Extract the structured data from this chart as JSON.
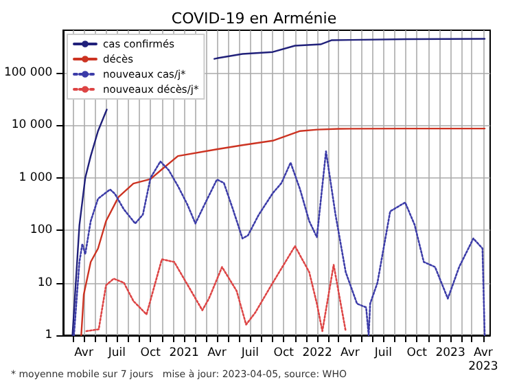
{
  "chart_data": {
    "type": "line",
    "title": "COVID-19 en Arménie",
    "log": "y",
    "grid": true,
    "legend": "top left",
    "marker": "none",
    "annotations": [
      "* moyenne mobile sur 7 jours   mise à jour: 2023-04-05, source: WHO"
    ],
    "xlim": [
      "2020-02-05",
      "2023-04-20"
    ],
    "xticks": [
      {
        "value": "2020-03-01",
        "label": null
      },
      {
        "value": "2020-04-01",
        "label": "Avr"
      },
      {
        "value": "2020-05-01",
        "label": null
      },
      {
        "value": "2020-06-01",
        "label": null
      },
      {
        "value": "2020-07-01",
        "label": "Juil"
      },
      {
        "value": "2020-08-01",
        "label": null
      },
      {
        "value": "2020-09-01",
        "label": null
      },
      {
        "value": "2020-10-01",
        "label": "Oct"
      },
      {
        "value": "2020-11-01",
        "label": null
      },
      {
        "value": "2020-12-01",
        "label": null
      },
      {
        "value": "2021-01-01",
        "label": "2021"
      },
      {
        "value": "2021-02-01",
        "label": null
      },
      {
        "value": "2021-03-01",
        "label": null
      },
      {
        "value": "2021-04-01",
        "label": "Avr"
      },
      {
        "value": "2021-05-01",
        "label": null
      },
      {
        "value": "2021-06-01",
        "label": null
      },
      {
        "value": "2021-07-01",
        "label": "Juil"
      },
      {
        "value": "2021-08-01",
        "label": null
      },
      {
        "value": "2021-09-01",
        "label": null
      },
      {
        "value": "2021-10-01",
        "label": "Oct"
      },
      {
        "value": "2021-11-01",
        "label": null
      },
      {
        "value": "2021-12-01",
        "label": null
      },
      {
        "value": "2022-01-01",
        "label": "2022"
      },
      {
        "value": "2022-02-01",
        "label": null
      },
      {
        "value": "2022-03-01",
        "label": null
      },
      {
        "value": "2022-04-01",
        "label": "Avr"
      },
      {
        "value": "2022-05-01",
        "label": null
      },
      {
        "value": "2022-06-01",
        "label": null
      },
      {
        "value": "2022-07-01",
        "label": "Juil"
      },
      {
        "value": "2022-08-01",
        "label": null
      },
      {
        "value": "2022-09-01",
        "label": null
      },
      {
        "value": "2022-10-01",
        "label": "Oct"
      },
      {
        "value": "2022-11-01",
        "label": null
      },
      {
        "value": "2022-12-01",
        "label": null
      },
      {
        "value": "2023-01-01",
        "label": "2023"
      },
      {
        "value": "2023-02-01",
        "label": null
      },
      {
        "value": "2023-03-01",
        "label": null
      },
      {
        "value": "2023-04-01",
        "label": "Avr\n2023"
      }
    ],
    "ylim": [
      1,
      650000
    ],
    "yticks": [
      1,
      10,
      100,
      {
        "value": 1000,
        "label": "1 000"
      },
      {
        "value": 10000,
        "label": "10 000"
      },
      {
        "value": 100000,
        "label": "100 000"
      }
    ],
    "series": [
      {
        "name": "cas confirmés",
        "color": "#20207a",
        "line_style": "solid",
        "x": [
          "2020-03-01",
          "2020-03-20",
          "2020-04-05",
          "2020-04-20",
          "2020-05-10",
          "2020-06-03",
          "2020-07-20",
          "2020-09-01",
          "2020-11-20",
          "2021-01-15",
          "2021-03-25",
          "2021-04-01",
          "2021-06-10",
          "2021-09-01",
          "2021-11-01",
          "2022-01-10",
          "2022-02-10",
          "2022-04-01",
          "2022-09-01",
          "2023-04-05"
        ],
        "values": [
          1,
          125,
          1000,
          2600,
          7800,
          20000,
          null,
          null,
          null,
          null,
          185000,
          190000,
          230000,
          250000,
          330000,
          350000,
          420000,
          425000,
          440000,
          445000
        ]
      },
      {
        "name": "décès",
        "color": "#cc3322",
        "line_style": "solid",
        "x": [
          "2020-03-25",
          "2020-04-01",
          "2020-04-20",
          "2020-05-10",
          "2020-06-01",
          "2020-07-05",
          "2020-08-15",
          "2020-10-01",
          "2020-11-01",
          "2020-12-15",
          "2021-04-01",
          "2021-06-10",
          "2021-09-01",
          "2021-11-15",
          "2022-01-01",
          "2022-03-01",
          "2022-09-01",
          "2023-04-05"
        ],
        "values": [
          1,
          6,
          25,
          45,
          150,
          430,
          780,
          950,
          1450,
          2600,
          3500,
          4200,
          5100,
          7800,
          8300,
          8600,
          8700,
          8700
        ]
      },
      {
        "name": "nouveaux cas/j*",
        "color": "#3c3ca8",
        "line_style": "dotted",
        "x": [
          "2020-03-05",
          "2020-03-20",
          "2020-03-28",
          "2020-04-05",
          "2020-04-20",
          "2020-05-10",
          "2020-06-12",
          "2020-06-25",
          "2020-07-20",
          "2020-08-20",
          "2020-09-10",
          "2020-10-01",
          "2020-10-28",
          "2020-11-20",
          "2020-12-15",
          "2021-01-10",
          "2021-02-01",
          "2021-02-25",
          "2021-04-01",
          "2021-04-20",
          "2021-05-15",
          "2021-06-10",
          "2021-06-25",
          "2021-07-25",
          "2021-09-01",
          "2021-09-25",
          "2021-10-20",
          "2021-11-15",
          "2021-12-10",
          "2021-12-31",
          "2022-01-25",
          "2022-02-20",
          "2022-03-20",
          "2022-04-20",
          "2022-05-15",
          "2022-05-22",
          "2022-05-26",
          "2022-06-15",
          "2022-07-20",
          "2022-08-30",
          "2022-09-25",
          "2022-10-20",
          "2022-11-20",
          "2022-12-25",
          "2023-01-25",
          "2023-03-05",
          "2023-03-30",
          "2023-04-05"
        ],
        "values": [
          1,
          25,
          55,
          35,
          150,
          400,
          600,
          500,
          250,
          135,
          200,
          1000,
          2050,
          1400,
          700,
          310,
          135,
          300,
          930,
          800,
          250,
          70,
          80,
          200,
          510,
          800,
          1950,
          600,
          150,
          74,
          3200,
          200,
          16,
          4,
          3.4,
          1,
          4,
          10,
          230,
          340,
          127,
          25,
          20,
          5,
          20,
          70,
          45,
          1
        ]
      },
      {
        "name": "nouveaux décès/j*",
        "color": "#dd4444",
        "line_style": "dotted",
        "x": [
          "2020-04-08",
          "2020-05-12",
          "2020-06-01",
          "2020-06-22",
          "2020-07-20",
          "2020-08-15",
          "2020-09-20",
          "2020-11-01",
          "2020-12-05",
          "2021-02-20",
          "2021-03-10",
          "2021-04-15",
          "2021-05-25",
          "2021-06-20",
          "2021-07-15",
          "2021-09-01",
          "2021-11-01",
          "2021-12-10",
          "2021-12-31",
          "2022-01-15",
          "2022-02-15",
          "2022-03-20"
        ],
        "values": [
          1.2,
          1.3,
          9,
          12,
          10,
          4.5,
          2.5,
          28,
          25,
          3,
          5,
          20,
          7,
          1.6,
          2.7,
          10,
          50,
          16,
          4,
          1.2,
          22,
          1.2
        ]
      }
    ]
  }
}
